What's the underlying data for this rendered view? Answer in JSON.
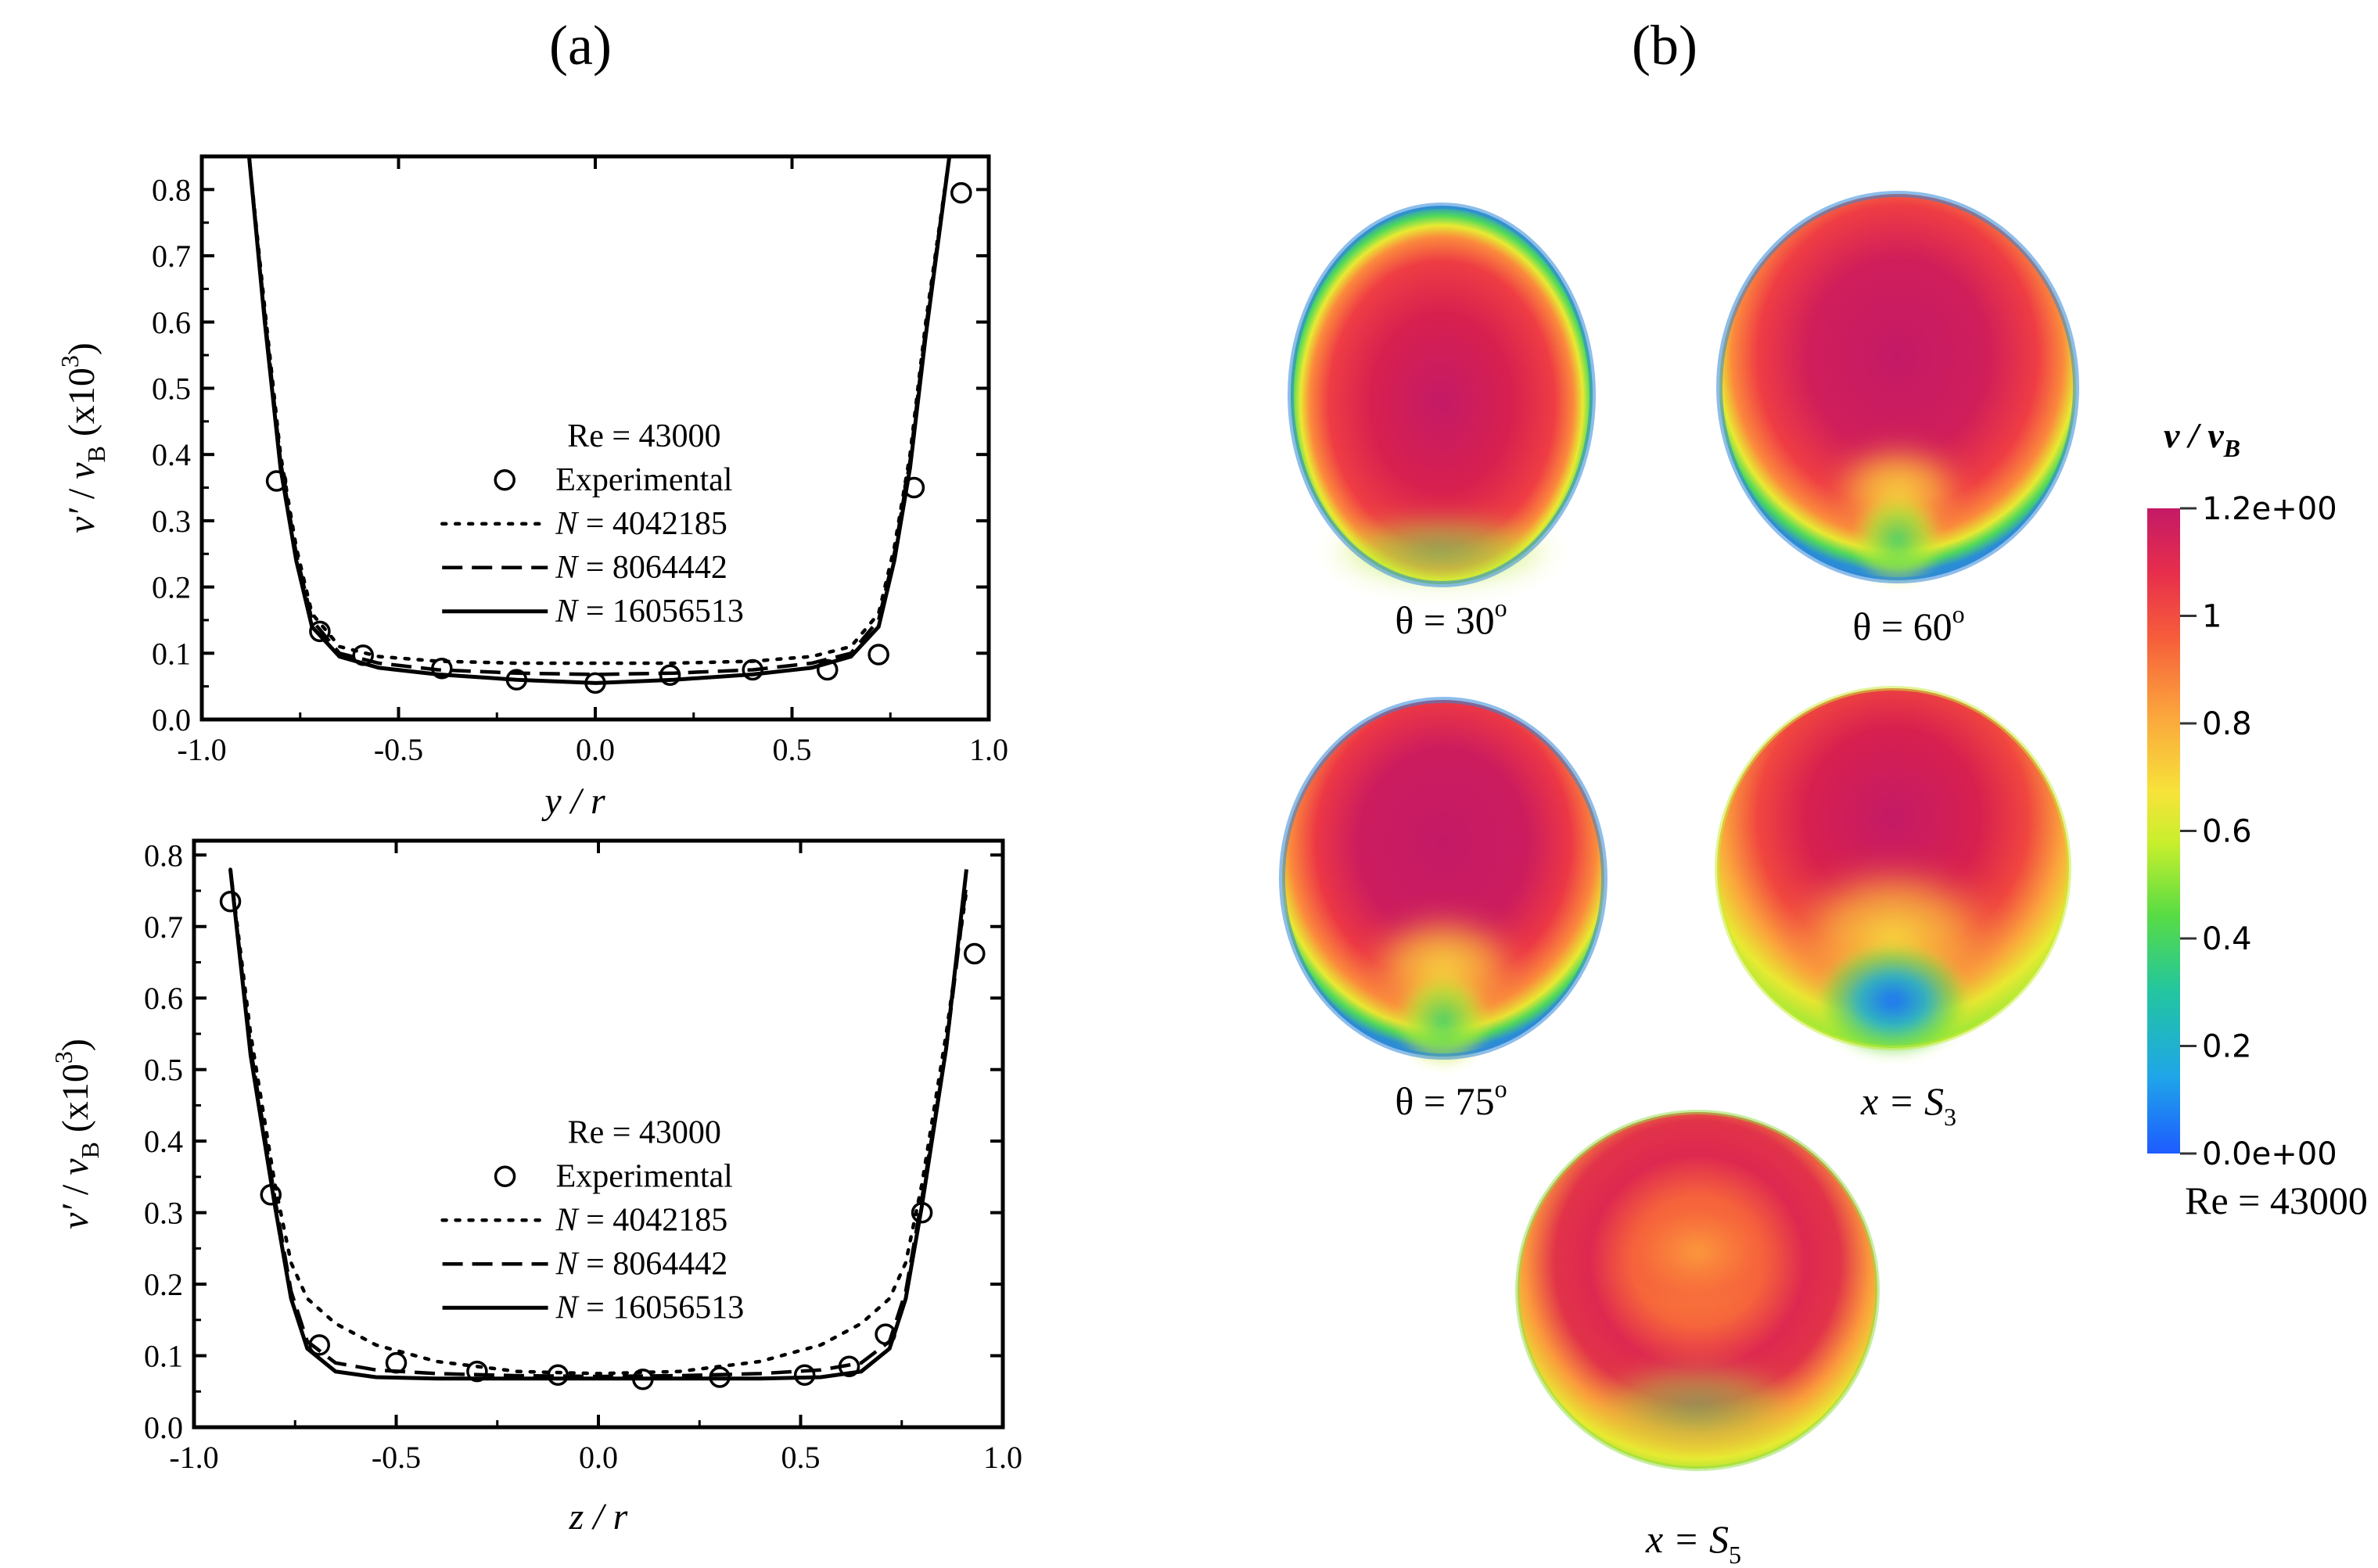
{
  "panels": {
    "a_label": "(a)",
    "b_label": "(b)"
  },
  "chart_data": [
    {
      "type": "line",
      "xlabel": "y / r",
      "ylabel": "v′ / vB (x10³)",
      "xlim": [
        -1.0,
        1.0
      ],
      "ylim": [
        0.0,
        0.85
      ],
      "xticks": [
        "-1.0",
        "-0.5",
        "0.0",
        "0.5",
        "1.0"
      ],
      "yticks": [
        "0.0",
        "0.1",
        "0.2",
        "0.3",
        "0.4",
        "0.5",
        "0.6",
        "0.7",
        "0.8"
      ],
      "legend_title": "Re = 43000",
      "legend_position": "center",
      "series": [
        {
          "name": "Experimental",
          "style": "circle",
          "x": [
            -0.81,
            -0.7,
            -0.59,
            -0.39,
            -0.2,
            0.0,
            0.19,
            0.4,
            0.59,
            0.72,
            0.81,
            0.93
          ],
          "y": [
            0.36,
            0.133,
            0.097,
            0.077,
            0.06,
            0.055,
            0.067,
            0.075,
            0.075,
            0.098,
            0.35,
            0.795
          ]
        },
        {
          "name": "N = 4042185",
          "style": "dotted",
          "x": [
            -0.88,
            -0.84,
            -0.8,
            -0.76,
            -0.72,
            -0.65,
            -0.55,
            -0.4,
            -0.2,
            0.0,
            0.2,
            0.4,
            0.55,
            0.65,
            0.72,
            0.76,
            0.8,
            0.84,
            0.9
          ],
          "y": [
            0.85,
            0.62,
            0.4,
            0.26,
            0.16,
            0.11,
            0.095,
            0.088,
            0.085,
            0.085,
            0.085,
            0.088,
            0.095,
            0.11,
            0.16,
            0.26,
            0.4,
            0.6,
            0.85
          ]
        },
        {
          "name": "N = 8064442",
          "style": "dashed",
          "x": [
            -0.88,
            -0.84,
            -0.8,
            -0.76,
            -0.72,
            -0.65,
            -0.55,
            -0.4,
            -0.2,
            0.0,
            0.2,
            0.4,
            0.55,
            0.65,
            0.72,
            0.76,
            0.8,
            0.84,
            0.9
          ],
          "y": [
            0.85,
            0.61,
            0.39,
            0.25,
            0.15,
            0.1,
            0.085,
            0.075,
            0.07,
            0.068,
            0.07,
            0.075,
            0.085,
            0.1,
            0.15,
            0.25,
            0.39,
            0.59,
            0.85
          ]
        },
        {
          "name": "N = 16056513",
          "style": "solid",
          "x": [
            -0.88,
            -0.84,
            -0.8,
            -0.76,
            -0.72,
            -0.65,
            -0.55,
            -0.4,
            -0.2,
            0.0,
            0.2,
            0.4,
            0.55,
            0.65,
            0.72,
            0.76,
            0.8,
            0.84,
            0.9
          ],
          "y": [
            0.85,
            0.6,
            0.38,
            0.24,
            0.14,
            0.095,
            0.078,
            0.068,
            0.06,
            0.055,
            0.06,
            0.068,
            0.078,
            0.095,
            0.14,
            0.24,
            0.38,
            0.58,
            0.85
          ]
        }
      ]
    },
    {
      "type": "line",
      "xlabel": "z / r",
      "ylabel": "v′ / vB (x10³)",
      "xlim": [
        -1.0,
        1.0
      ],
      "ylim": [
        0.0,
        0.82
      ],
      "xticks": [
        "-1.0",
        "-0.5",
        "0.0",
        "0.5",
        "1.0"
      ],
      "yticks": [
        "0.0",
        "0.1",
        "0.2",
        "0.3",
        "0.4",
        "0.5",
        "0.6",
        "0.7",
        "0.8"
      ],
      "legend_title": "Re = 43000",
      "legend_position": "center",
      "series": [
        {
          "name": "Experimental",
          "style": "circle",
          "x": [
            -0.91,
            -0.81,
            -0.69,
            -0.5,
            -0.3,
            -0.1,
            0.11,
            0.3,
            0.51,
            0.62,
            0.71,
            0.8,
            0.93
          ],
          "y": [
            0.735,
            0.325,
            0.115,
            0.09,
            0.078,
            0.073,
            0.067,
            0.07,
            0.073,
            0.085,
            0.13,
            0.3,
            0.662
          ]
        },
        {
          "name": "N = 4042185",
          "style": "dotted",
          "x": [
            -0.91,
            -0.86,
            -0.8,
            -0.76,
            -0.72,
            -0.65,
            -0.55,
            -0.4,
            -0.2,
            0.0,
            0.2,
            0.4,
            0.55,
            0.65,
            0.72,
            0.76,
            0.8,
            0.86,
            0.91
          ],
          "y": [
            0.78,
            0.55,
            0.34,
            0.23,
            0.18,
            0.145,
            0.115,
            0.092,
            0.078,
            0.075,
            0.078,
            0.092,
            0.115,
            0.145,
            0.18,
            0.23,
            0.34,
            0.55,
            0.75
          ]
        },
        {
          "name": "N = 8064442",
          "style": "dashed",
          "x": [
            -0.91,
            -0.86,
            -0.8,
            -0.76,
            -0.72,
            -0.65,
            -0.55,
            -0.4,
            -0.2,
            0.0,
            0.2,
            0.4,
            0.55,
            0.65,
            0.72,
            0.76,
            0.8,
            0.86,
            0.91
          ],
          "y": [
            0.78,
            0.53,
            0.32,
            0.19,
            0.12,
            0.09,
            0.08,
            0.075,
            0.072,
            0.071,
            0.072,
            0.075,
            0.08,
            0.09,
            0.12,
            0.19,
            0.32,
            0.53,
            0.76
          ]
        },
        {
          "name": "N = 16056513",
          "style": "solid",
          "x": [
            -0.91,
            -0.86,
            -0.8,
            -0.76,
            -0.72,
            -0.65,
            -0.55,
            -0.4,
            -0.2,
            0.0,
            0.2,
            0.4,
            0.55,
            0.65,
            0.72,
            0.76,
            0.8,
            0.86,
            0.91
          ],
          "y": [
            0.78,
            0.52,
            0.31,
            0.18,
            0.11,
            0.078,
            0.07,
            0.068,
            0.068,
            0.068,
            0.068,
            0.068,
            0.07,
            0.078,
            0.11,
            0.18,
            0.31,
            0.53,
            0.78
          ]
        }
      ]
    },
    {
      "type": "heatmap",
      "colorbar_title": "v / vB",
      "colorbar_ticks": [
        "1.2e+00",
        "1",
        "0.8",
        "0.6",
        "0.4",
        "0.2",
        "0.0e+00"
      ],
      "colorbar_range": [
        0.0,
        1.2
      ],
      "colormap": [
        "#1e5bff",
        "#1fa6e8",
        "#22c5a0",
        "#58dc44",
        "#c7ef2c",
        "#f7e33a",
        "#fba53c",
        "#f65d3b",
        "#e72e4c",
        "#c41a66"
      ],
      "footer_label": "Re = 43000",
      "sections": [
        {
          "label": "θ = 30°",
          "label_main": "θ = 30",
          "label_sup": "o",
          "pattern": "center"
        },
        {
          "label": "θ = 60°",
          "label_main": "θ = 60",
          "label_sup": "o",
          "pattern": "notch-small"
        },
        {
          "label": "θ = 75°",
          "label_main": "θ = 75",
          "label_sup": "o",
          "pattern": "notch-medium"
        },
        {
          "label": "x = S3",
          "label_main": "x = S",
          "label_sub": "3",
          "pattern": "notch-large"
        },
        {
          "label": "x = S5",
          "label_main": "x = S",
          "label_sub": "5",
          "pattern": "ring"
        }
      ]
    }
  ]
}
